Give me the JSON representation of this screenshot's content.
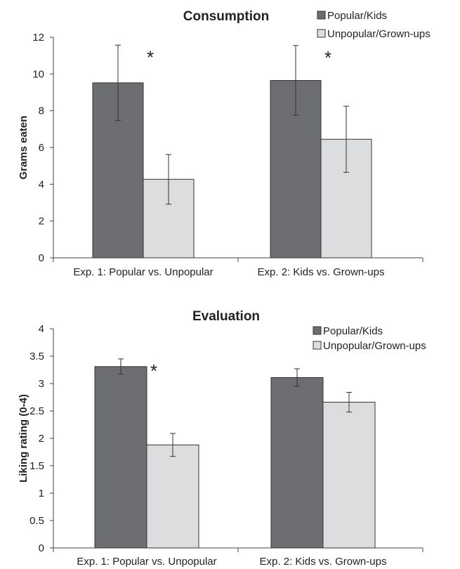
{
  "chart_data": [
    {
      "type": "bar",
      "title": "Consumption",
      "xlabel": "",
      "ylabel": "Grams eaten",
      "ylim": [
        0,
        12
      ],
      "yticks": [
        0,
        2,
        4,
        6,
        8,
        10,
        12
      ],
      "categories": [
        "Exp. 1: Popular vs. Unpopular",
        "Exp. 2: Kids vs. Grown-ups"
      ],
      "series": [
        {
          "name": "Popular/Kids",
          "color": "#6d6e71",
          "values": [
            9.52,
            9.65
          ],
          "errors": [
            2.05,
            1.9
          ]
        },
        {
          "name": "Unpopular/Grown-ups",
          "color": "#dcdddf",
          "values": [
            4.27,
            6.45
          ],
          "errors": [
            1.35,
            1.8
          ]
        }
      ],
      "significance": [
        "*",
        "*"
      ],
      "legend": "top-right",
      "grid": false
    },
    {
      "type": "bar",
      "title": "Evaluation",
      "xlabel": "",
      "ylabel": "Liking rating (0-4)",
      "ylim": [
        0,
        4
      ],
      "yticks": [
        "0",
        "0.5",
        "1",
        "1.5",
        "2",
        "2.5",
        "3",
        "3.5",
        "4"
      ],
      "categories": [
        "Exp. 1: Popular vs. Unpopular",
        "Exp. 2: Kids vs. Grown-ups"
      ],
      "series": [
        {
          "name": "Popular/Kids",
          "color": "#6d6e71",
          "values": [
            3.31,
            3.11
          ],
          "errors": [
            0.14,
            0.16
          ]
        },
        {
          "name": "Unpopular/Grown-ups",
          "color": "#dcdddf",
          "values": [
            1.88,
            2.66
          ],
          "errors": [
            0.21,
            0.18
          ]
        }
      ],
      "significance": [
        "*",
        ""
      ],
      "legend": "top-right",
      "grid": false
    }
  ]
}
